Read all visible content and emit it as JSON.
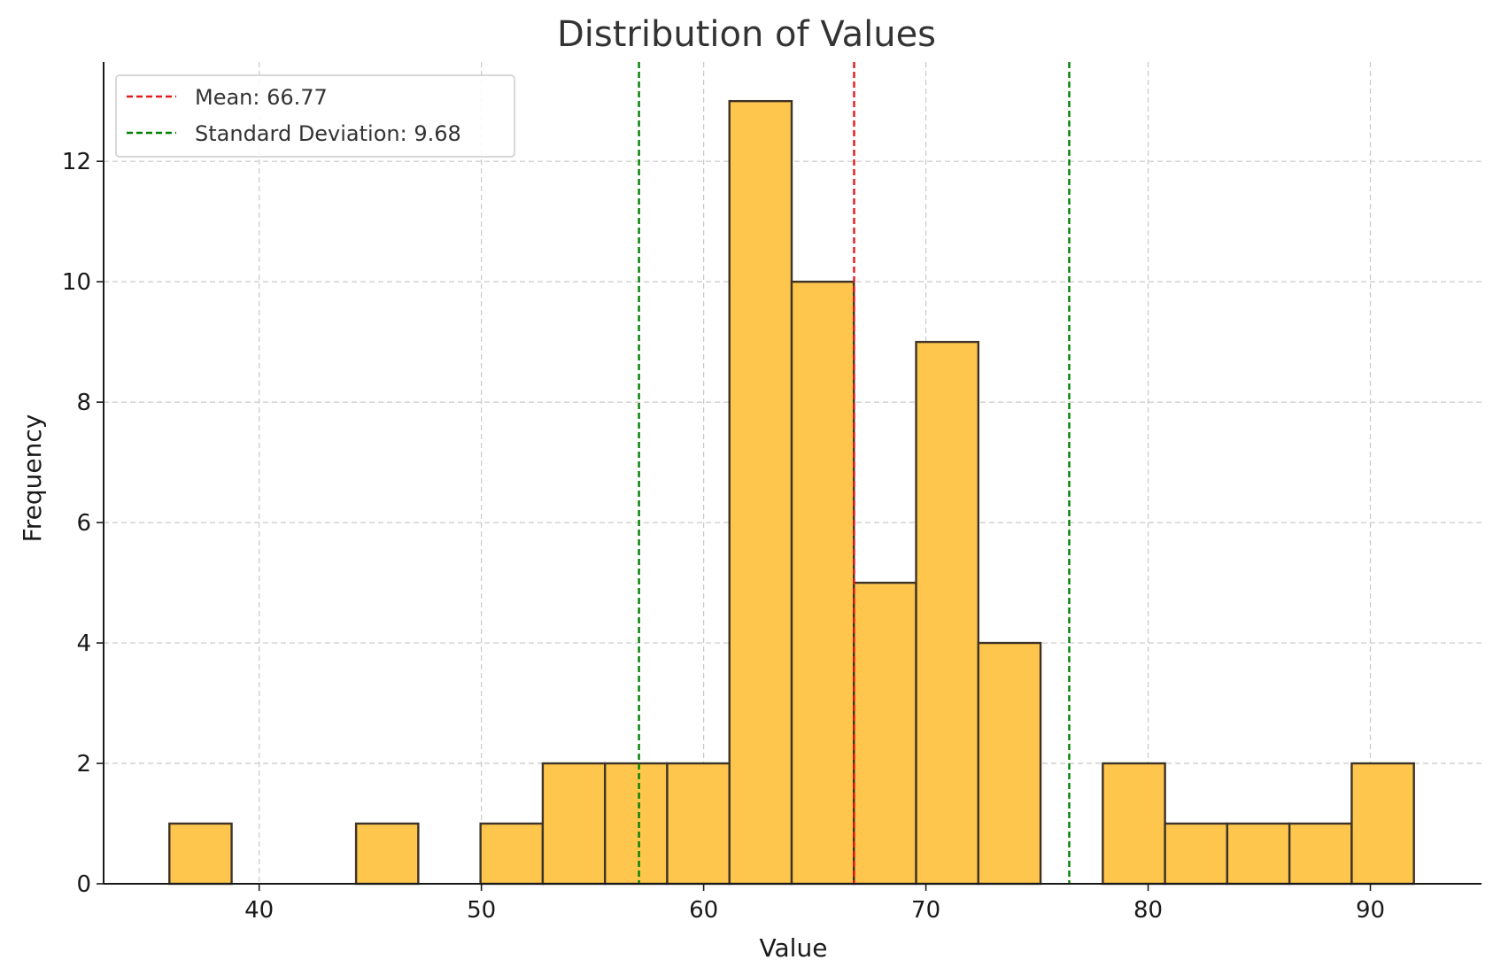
{
  "chart_data": {
    "type": "bar",
    "title": "Distribution of Values",
    "xlabel": "Value",
    "ylabel": "Frequency",
    "xlim": [
      33,
      95
    ],
    "ylim": [
      0,
      13.65
    ],
    "xticks": [
      40,
      50,
      60,
      70,
      80,
      90
    ],
    "yticks": [
      0,
      2,
      4,
      6,
      8,
      10,
      12
    ],
    "grid": true,
    "bin_edges": [
      35.96,
      38.76,
      41.56,
      44.36,
      47.16,
      49.96,
      52.76,
      55.56,
      58.36,
      61.16,
      63.96,
      66.76,
      69.56,
      72.36,
      75.16,
      77.96,
      80.76,
      83.56,
      86.36,
      89.16,
      91.96
    ],
    "counts": [
      1,
      0,
      0,
      1,
      0,
      1,
      2,
      2,
      2,
      13,
      10,
      5,
      9,
      4,
      0,
      2,
      1,
      1,
      1,
      2
    ],
    "bar_color": "#FFC64D",
    "bar_edge_color": "#3d3327",
    "reference_lines": [
      {
        "name": "mean",
        "label": "Mean: 66.77",
        "x": 66.77,
        "color": "#e41a1c"
      },
      {
        "name": "std-lower",
        "label": "Standard Deviation: 9.68",
        "x": 57.09,
        "color": "#008000"
      },
      {
        "name": "std-upper",
        "label": "",
        "x": 76.45,
        "color": "#008000"
      }
    ],
    "legend": {
      "placement": "top-left",
      "entries": [
        {
          "label": "Mean: 66.77",
          "color": "#e41a1c"
        },
        {
          "label": "Standard Deviation: 9.68",
          "color": "#008000"
        }
      ]
    }
  }
}
